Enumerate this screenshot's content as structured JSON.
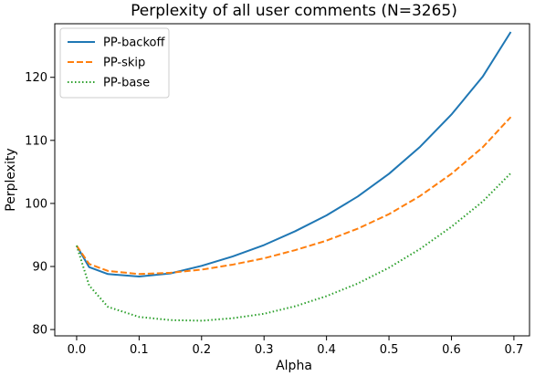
{
  "chart_data": {
    "type": "line",
    "title": "Perplexity of all user comments (N=3265)",
    "xlabel": "Alpha",
    "ylabel": "Perplexity",
    "xlim": [
      -0.035,
      0.725
    ],
    "ylim": [
      79,
      128.5
    ],
    "xticks": [
      0.0,
      0.1,
      0.2,
      0.3,
      0.4,
      0.5,
      0.6,
      0.7
    ],
    "xtick_labels": [
      "0.0",
      "0.1",
      "0.2",
      "0.3",
      "0.4",
      "0.5",
      "0.6",
      "0.7"
    ],
    "yticks": [
      80,
      90,
      100,
      110,
      120
    ],
    "ytick_labels": [
      "80",
      "90",
      "100",
      "110",
      "120"
    ],
    "grid": false,
    "legend_position": "top-left",
    "x": [
      0.0,
      0.02,
      0.05,
      0.1,
      0.15,
      0.2,
      0.25,
      0.3,
      0.35,
      0.4,
      0.45,
      0.5,
      0.55,
      0.6,
      0.65,
      0.695
    ],
    "series": [
      {
        "name": "PP-backoff",
        "color": "#1f77b4",
        "style": "solid",
        "values": [
          93.3,
          89.9,
          88.8,
          88.4,
          88.9,
          90.1,
          91.6,
          93.4,
          95.6,
          98.1,
          101.1,
          104.7,
          109.0,
          114.1,
          120.1,
          127.2
        ]
      },
      {
        "name": "PP-skip",
        "color": "#ff7f0e",
        "style": "dashed",
        "values": [
          93.3,
          90.4,
          89.3,
          88.8,
          89.0,
          89.5,
          90.3,
          91.3,
          92.6,
          94.1,
          96.0,
          98.3,
          101.2,
          104.7,
          108.9,
          113.7
        ]
      },
      {
        "name": "PP-base",
        "color": "#2ca02c",
        "style": "dotted",
        "values": [
          93.3,
          87.0,
          83.6,
          82.0,
          81.5,
          81.4,
          81.8,
          82.5,
          83.7,
          85.3,
          87.3,
          89.8,
          92.8,
          96.3,
          100.3,
          104.8
        ]
      }
    ]
  }
}
